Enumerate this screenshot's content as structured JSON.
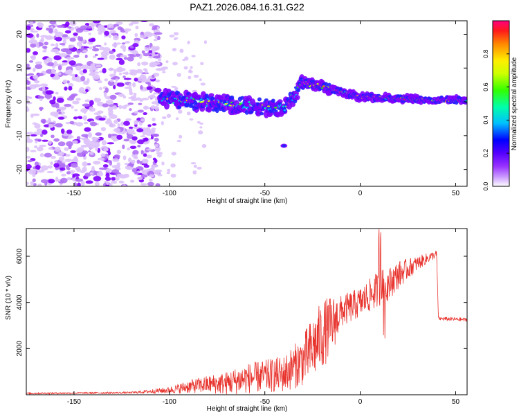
{
  "colors": {
    "snr_line": "#e8332d",
    "background": "#ffffff",
    "colormap": [
      "#ffffff",
      "#d9b8f7",
      "#a24cf2",
      "#8000ff",
      "#1a1aff",
      "#00ccff",
      "#00ff66",
      "#aaff00",
      "#ffff00",
      "#ff8800",
      "#ff1a1a",
      "#ff0099"
    ]
  },
  "chart_data": [
    {
      "type": "heatmap",
      "title": "PAZ1.2026.084.16.31.G22",
      "xlabel": "Height of straight line (km)",
      "ylabel": "Frequency (Hz)",
      "xlim": [
        -175,
        56
      ],
      "ylim": [
        -25,
        24
      ],
      "xticks": [
        -150,
        -100,
        -50,
        0,
        50
      ],
      "yticks": [
        -20,
        -10,
        0,
        10,
        20
      ],
      "xtick_labels": [
        "-150",
        "-100",
        "-50",
        "0",
        "50"
      ],
      "ytick_labels": [
        "-20",
        "-10",
        "0",
        "10",
        "20"
      ],
      "colorbar": {
        "label": "Normalized spectral amplitude",
        "range": [
          0,
          1
        ],
        "ticks": [
          0.0,
          0.2,
          0.4,
          0.6,
          0.8
        ],
        "tick_labels": [
          "0.0",
          "0.2",
          "0.4",
          "0.6",
          "0.8"
        ]
      },
      "description_series": {
        "noise_region_x": [
          -175,
          -105
        ],
        "ridge_x": [
          -105,
          -40,
          -30,
          -20,
          0,
          20,
          40,
          56
        ],
        "ridge_freq_hz": [
          1.0,
          -2.0,
          5.5,
          4.5,
          1.5,
          1.0,
          0.5,
          0.5
        ]
      }
    },
    {
      "type": "line",
      "xlabel": "Height of straight line (km)",
      "ylabel": "SNR (10 * v/v)",
      "xlim": [
        -175,
        56
      ],
      "ylim": [
        0,
        7200
      ],
      "xticks": [
        -150,
        -100,
        -50,
        0,
        50
      ],
      "yticks": [
        2000,
        4000,
        6000
      ],
      "xtick_labels": [
        "-150",
        "-100",
        "-50",
        "0",
        "50"
      ],
      "ytick_labels": [
        "2000",
        "4000",
        "6000"
      ],
      "series": [
        {
          "name": "SNR",
          "x": [
            -175,
            -120,
            -100,
            -90,
            -80,
            -70,
            -60,
            -50,
            -40,
            -30,
            -25,
            -20,
            -15,
            -10,
            0,
            10,
            15,
            20,
            30,
            40,
            41,
            56
          ],
          "mean": [
            60,
            90,
            200,
            350,
            450,
            500,
            700,
            800,
            900,
            1500,
            2000,
            2600,
            3000,
            3600,
            4000,
            4600,
            4800,
            5200,
            5700,
            6100,
            3300,
            3250
          ],
          "noise": [
            40,
            40,
            140,
            280,
            380,
            500,
            650,
            700,
            800,
            1100,
            1400,
            1500,
            1300,
            700,
            650,
            800,
            700,
            600,
            300,
            150,
            80,
            80
          ]
        }
      ]
    }
  ]
}
